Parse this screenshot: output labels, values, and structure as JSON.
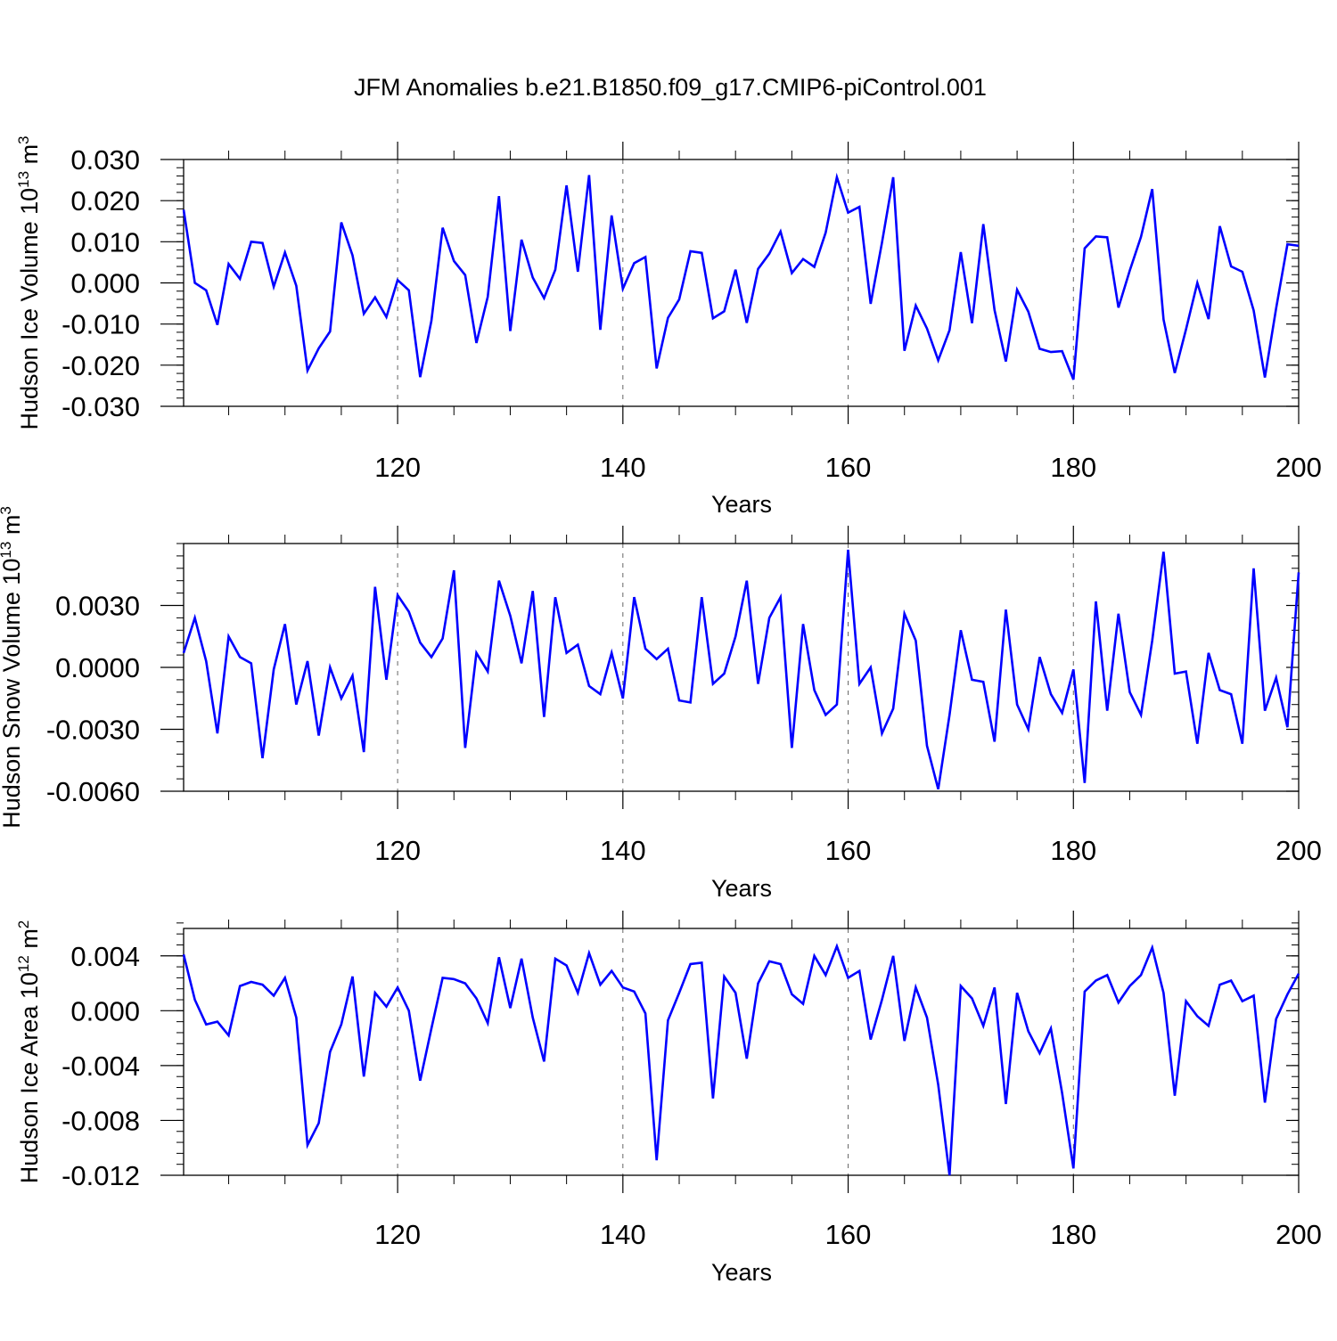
{
  "title": "JFM Anomalies b.e21.B1850.f09_g17.CMIP6-piControl.001",
  "colors": {
    "series": "#0000ff",
    "axis": "#000000",
    "grid": "#666666"
  },
  "chart_data": [
    {
      "type": "line",
      "xlabel": "Years",
      "ylabel": {
        "prefix": "Hudson Ice Volume 10",
        "exponent": "13",
        "unit": " m",
        "unit_exponent": "3"
      },
      "xlim": [
        101,
        200
      ],
      "ylim": [
        -0.03,
        0.03
      ],
      "xticks": [
        120,
        140,
        160,
        180,
        200
      ],
      "xtick_labels": [
        "120",
        "140",
        "160",
        "180",
        "200"
      ],
      "yticks": [
        -0.03,
        -0.02,
        -0.01,
        0.0,
        0.01,
        0.02,
        0.03
      ],
      "ytick_labels": [
        "-0.030",
        "-0.020",
        "-0.010",
        "0.000",
        "0.010",
        "0.020",
        "0.030"
      ],
      "grid": "vertical dashed at 120,140,160,180",
      "series": [
        {
          "x": [
            101,
            102,
            103,
            104,
            105,
            106,
            107,
            108,
            109,
            110,
            111,
            112,
            113,
            114,
            115,
            116,
            117,
            118,
            119,
            120,
            121,
            122,
            123,
            124,
            125,
            126,
            127,
            128,
            129,
            130,
            131,
            132,
            133,
            134,
            135,
            136,
            137,
            138,
            139,
            140,
            141,
            142,
            143,
            144,
            145,
            146,
            147,
            148,
            149,
            150,
            151,
            152,
            153,
            154,
            155,
            156,
            157,
            158,
            159,
            160,
            161,
            162,
            163,
            164,
            165,
            166,
            167,
            168,
            169,
            170,
            171,
            172,
            173,
            174,
            175,
            176,
            177,
            178,
            179,
            180,
            181,
            182,
            183,
            184,
            185,
            186,
            187,
            188,
            189,
            190,
            191,
            192,
            193,
            194,
            195,
            196,
            197,
            198,
            199,
            200
          ],
          "values": [
            0.0178,
            0.0,
            -0.0018,
            -0.0102,
            0.0046,
            0.001,
            0.01,
            0.0097,
            -0.0009,
            0.0074,
            -0.0007,
            -0.0213,
            -0.0159,
            -0.0118,
            0.0147,
            0.0067,
            -0.0075,
            -0.0035,
            -0.0083,
            0.0007,
            -0.0018,
            -0.0229,
            -0.0092,
            0.0134,
            0.0053,
            0.0019,
            -0.0146,
            -0.0034,
            0.0211,
            -0.0117,
            0.0105,
            0.0013,
            -0.0037,
            0.0032,
            0.0237,
            0.0027,
            0.0262,
            -0.0114,
            0.0164,
            -0.0014,
            0.0048,
            0.0063,
            -0.0208,
            -0.0085,
            -0.004,
            0.0077,
            0.0073,
            -0.0086,
            -0.0069,
            0.0032,
            -0.0097,
            0.0034,
            0.0071,
            0.0125,
            0.0024,
            0.0058,
            0.0039,
            0.0122,
            0.0257,
            0.0171,
            0.0185,
            -0.0051,
            0.0098,
            0.0257,
            -0.0165,
            -0.0055,
            -0.0111,
            -0.0188,
            -0.0115,
            0.0075,
            -0.0098,
            0.0143,
            -0.0066,
            -0.0191,
            -0.0017,
            -0.007,
            -0.016,
            -0.0168,
            -0.0166,
            -0.0235,
            0.0084,
            0.0113,
            0.0111,
            -0.006,
            0.003,
            0.0112,
            0.0228,
            -0.0089,
            -0.0219,
            -0.0113,
            0.0,
            -0.0088,
            0.0138,
            0.004,
            0.0027,
            -0.0067,
            -0.023,
            -0.0062,
            0.0094,
            0.009
          ]
        }
      ]
    },
    {
      "type": "line",
      "xlabel": "Years",
      "ylabel": {
        "prefix": "Hudson Snow Volume 10",
        "exponent": "13",
        "unit": " m",
        "unit_exponent": "3"
      },
      "xlim": [
        101,
        200
      ],
      "ylim": [
        -0.006,
        0.006
      ],
      "xticks": [
        120,
        140,
        160,
        180,
        200
      ],
      "xtick_labels": [
        "120",
        "140",
        "160",
        "180",
        "200"
      ],
      "yticks": [
        -0.006,
        -0.003,
        0.0,
        0.003
      ],
      "ytick_labels": [
        "-0.0060",
        "-0.0030",
        "0.0000",
        "0.0030"
      ],
      "grid": "vertical dashed at 120,140,160,180",
      "series": [
        {
          "x": [
            101,
            102,
            103,
            104,
            105,
            106,
            107,
            108,
            109,
            110,
            111,
            112,
            113,
            114,
            115,
            116,
            117,
            118,
            119,
            120,
            121,
            122,
            123,
            124,
            125,
            126,
            127,
            128,
            129,
            130,
            131,
            132,
            133,
            134,
            135,
            136,
            137,
            138,
            139,
            140,
            141,
            142,
            143,
            144,
            145,
            146,
            147,
            148,
            149,
            150,
            151,
            152,
            153,
            154,
            155,
            156,
            157,
            158,
            159,
            160,
            161,
            162,
            163,
            164,
            165,
            166,
            167,
            168,
            169,
            170,
            171,
            172,
            173,
            174,
            175,
            176,
            177,
            178,
            179,
            180,
            181,
            182,
            183,
            184,
            185,
            186,
            187,
            188,
            189,
            190,
            191,
            192,
            193,
            194,
            195,
            196,
            197,
            198,
            199,
            200
          ],
          "values": [
            0.0007,
            0.0024,
            0.0003,
            -0.0032,
            0.0015,
            0.0005,
            0.0002,
            -0.0044,
            -0.0001,
            0.0021,
            -0.0018,
            0.0003,
            -0.0033,
            0.0,
            -0.0015,
            -0.0004,
            -0.0041,
            0.0039,
            -0.0006,
            0.0035,
            0.0027,
            0.0012,
            0.0005,
            0.0014,
            0.0047,
            -0.0039,
            0.0007,
            -0.0002,
            0.0042,
            0.0025,
            0.0002,
            0.0037,
            -0.0024,
            0.0034,
            0.0007,
            0.0011,
            -0.0009,
            -0.0013,
            0.0007,
            -0.0015,
            0.0034,
            0.0009,
            0.0004,
            0.0009,
            -0.0016,
            -0.0017,
            0.0034,
            -0.0008,
            -0.0003,
            0.0015,
            0.0042,
            -0.0008,
            0.0024,
            0.0034,
            -0.0039,
            0.0021,
            -0.0011,
            -0.0023,
            -0.0018,
            0.0057,
            -0.0008,
            0.0,
            -0.0032,
            -0.002,
            0.0026,
            0.0013,
            -0.0038,
            -0.0059,
            -0.0023,
            0.0018,
            -0.0006,
            -0.0007,
            -0.0036,
            0.0028,
            -0.0018,
            -0.003,
            0.0005,
            -0.0013,
            -0.0022,
            -0.0001,
            -0.0056,
            0.0032,
            -0.0021,
            0.0026,
            -0.0012,
            -0.0023,
            0.0013,
            0.0056,
            -0.0003,
            -0.0002,
            -0.0037,
            0.0007,
            -0.0011,
            -0.0013,
            -0.0037,
            0.0048,
            -0.0021,
            -0.0005,
            -0.0029,
            0.0046
          ]
        }
      ]
    },
    {
      "type": "line",
      "xlabel": "Years",
      "ylabel": {
        "prefix": "Hudson Ice Area 10",
        "exponent": "12",
        "unit": " m",
        "unit_exponent": "2"
      },
      "xlim": [
        101,
        200
      ],
      "ylim": [
        -0.012,
        0.006
      ],
      "xticks": [
        120,
        140,
        160,
        180,
        200
      ],
      "xtick_labels": [
        "120",
        "140",
        "160",
        "180",
        "200"
      ],
      "yticks": [
        -0.012,
        -0.008,
        -0.004,
        0.0,
        0.004
      ],
      "ytick_labels": [
        "-0.012",
        "-0.008",
        "-0.004",
        "0.000",
        "0.004"
      ],
      "grid": "vertical dashed at 120,140,160,180",
      "series": [
        {
          "x": [
            101,
            102,
            103,
            104,
            105,
            106,
            107,
            108,
            109,
            110,
            111,
            112,
            113,
            114,
            115,
            116,
            117,
            118,
            119,
            120,
            121,
            122,
            123,
            124,
            125,
            126,
            127,
            128,
            129,
            130,
            131,
            132,
            133,
            134,
            135,
            136,
            137,
            138,
            139,
            140,
            141,
            142,
            143,
            144,
            145,
            146,
            147,
            148,
            149,
            150,
            151,
            152,
            153,
            154,
            155,
            156,
            157,
            158,
            159,
            160,
            161,
            162,
            163,
            164,
            165,
            166,
            167,
            168,
            169,
            170,
            171,
            172,
            173,
            174,
            175,
            176,
            177,
            178,
            179,
            180,
            181,
            182,
            183,
            184,
            185,
            186,
            187,
            188,
            189,
            190,
            191,
            192,
            193,
            194,
            195,
            196,
            197,
            198,
            199,
            200
          ],
          "values": [
            0.0041,
            0.0008,
            -0.001,
            -0.0008,
            -0.0018,
            0.0018,
            0.0021,
            0.0019,
            0.0011,
            0.0024,
            -0.0005,
            -0.0098,
            -0.0082,
            -0.003,
            -0.001,
            0.0025,
            -0.0048,
            0.0013,
            0.0003,
            0.0017,
            0.0,
            -0.0051,
            -0.0013,
            0.0024,
            0.0023,
            0.002,
            0.0009,
            -0.0009,
            0.0039,
            0.0002,
            0.0038,
            -0.0005,
            -0.0037,
            0.0038,
            0.0033,
            0.0013,
            0.0042,
            0.0019,
            0.0029,
            0.0017,
            0.0014,
            -0.0002,
            -0.0109,
            -0.0007,
            0.0013,
            0.0034,
            0.0035,
            -0.0064,
            0.0025,
            0.0013,
            -0.0035,
            0.002,
            0.0036,
            0.0034,
            0.0012,
            0.0005,
            0.004,
            0.0026,
            0.0047,
            0.0024,
            0.0029,
            -0.0021,
            0.0008,
            0.004,
            -0.0022,
            0.0017,
            -0.0005,
            -0.0054,
            -0.012,
            0.0018,
            0.0009,
            -0.0011,
            0.0017,
            -0.0068,
            0.0013,
            -0.0015,
            -0.0031,
            -0.0013,
            -0.006,
            -0.0115,
            0.0014,
            0.0022,
            0.0026,
            0.0006,
            0.0018,
            0.0026,
            0.0046,
            0.0013,
            -0.0062,
            0.0007,
            -0.0004,
            -0.0011,
            0.0019,
            0.0022,
            0.0007,
            0.0011,
            -0.0067,
            -0.0006,
            0.0012,
            0.0027
          ]
        }
      ]
    }
  ]
}
